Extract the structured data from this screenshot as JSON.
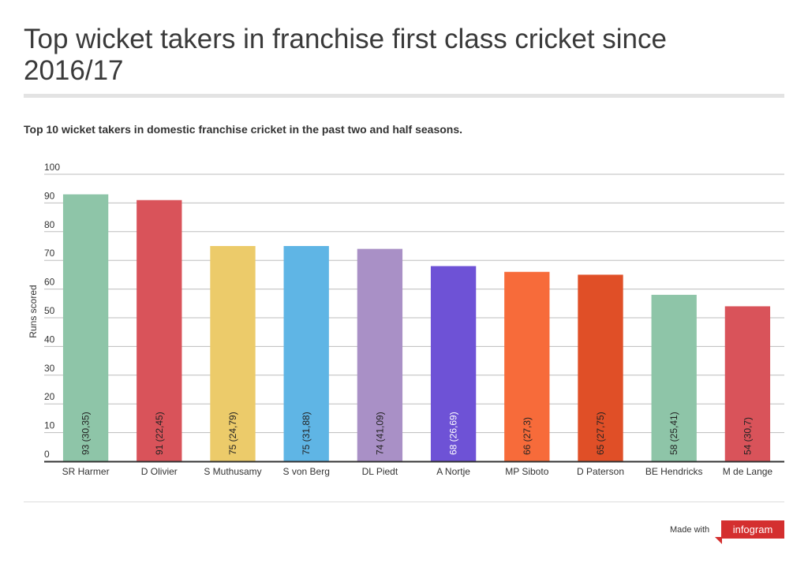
{
  "header": {
    "title": "Top wicket takers in franchise first class cricket since 2016/17",
    "subtitle": "Top 10 wicket takers in domestic franchise cricket in the past two and half seasons."
  },
  "footer": {
    "made_with": "Made with",
    "brand": "infogram",
    "brand_color": "#d42f2f"
  },
  "chart_data": {
    "type": "bar",
    "title": "Top wicket takers in franchise first class cricket since 2016/17",
    "subtitle": "Top 10 wicket takers in domestic franchise cricket in the past two and half seasons.",
    "xlabel": "",
    "ylabel": "Runs scored",
    "ylim": [
      0,
      100
    ],
    "yticks": [
      0,
      10,
      20,
      30,
      40,
      50,
      60,
      70,
      80,
      90,
      100
    ],
    "grid": true,
    "categories": [
      "SR Harmer",
      "D Olivier",
      "S Muthusamy",
      "S von Berg",
      "DL Piedt",
      "A Nortje",
      "MP Siboto",
      "D Paterson",
      "BE Hendricks",
      "M de Lange"
    ],
    "values": [
      93,
      91,
      75,
      75,
      74,
      68,
      66,
      65,
      58,
      54
    ],
    "data_labels": [
      "93 (30,35)",
      "91 (22,45)",
      "75 (24,79)",
      "75 (31,88)",
      "74 (41,09)",
      "68 (26,69)",
      "66 (27,3)",
      "65 (27,75)",
      "58 (25,41)",
      "54 (30,7)"
    ],
    "colors": [
      "#8ec5a8",
      "#d9535a",
      "#eccb6a",
      "#5fb5e5",
      "#a990c6",
      "#6e52d6",
      "#f76b3a",
      "#e04f27",
      "#8ec5a8",
      "#d9535a"
    ]
  }
}
